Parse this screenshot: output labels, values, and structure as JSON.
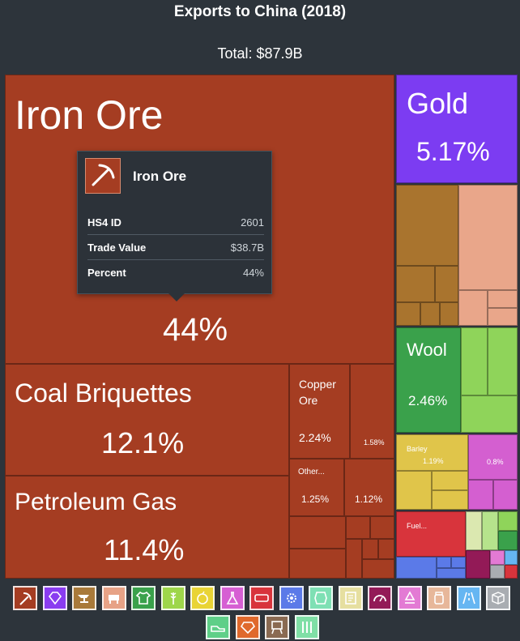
{
  "title": "Exports to China (2018)",
  "total": "Total: $87.9B",
  "chart_data": {
    "type": "treemap",
    "title": "Exports to China (2018)",
    "total": "$87.9B",
    "items": [
      {
        "label": "Iron Ore",
        "percent": 44,
        "display": "44%"
      },
      {
        "label": "Coal Briquettes",
        "percent": 12.1,
        "display": "12.1%"
      },
      {
        "label": "Petroleum Gas",
        "percent": 11.4,
        "display": "11.4%"
      },
      {
        "label": "Gold",
        "percent": 5.17,
        "display": "5.17%"
      },
      {
        "label": "Wool",
        "percent": 2.46,
        "display": "2.46%"
      },
      {
        "label": "Copper Ore",
        "percent": 2.24,
        "display": "2.24%"
      },
      {
        "label": "",
        "percent": 1.58,
        "display": "1.58%"
      },
      {
        "label": "Other...",
        "percent": 1.25,
        "display": "1.25%"
      },
      {
        "label": "",
        "percent": 1.12,
        "display": "1.12%"
      },
      {
        "label": "Barley",
        "percent": 1.19,
        "display": "1.19%"
      },
      {
        "label": "",
        "percent": 0.8,
        "display": "0.8%"
      },
      {
        "label": "Fuel...",
        "percent": null,
        "display": ""
      }
    ]
  },
  "tooltip": {
    "name": "Iron Ore",
    "rows": [
      {
        "key": "HS4 ID",
        "value": "2601"
      },
      {
        "key": "Trade Value",
        "value": "$38.7B"
      },
      {
        "key": "Percent",
        "value": "44%"
      }
    ]
  },
  "colors": {
    "background": "#2d343b",
    "minerals": "#a53d22",
    "gold": "#7c3cf2",
    "animal_hides": "#a9742e",
    "animal_products": "#e9a68a",
    "textiles": "#3aa14b",
    "vegetable": "#d9c349",
    "foodstuffs": "#e6e24a",
    "chemicals": "#d45fd0",
    "plastics": "#d8343c",
    "machines": "#5b7ae8",
    "vehicles": "#66b6f2",
    "stone": "#dbe8b0",
    "misc": "#a9adb2"
  },
  "legend": [
    {
      "icon": "pickaxe-icon",
      "color": "#a53d22"
    },
    {
      "icon": "diamond-icon",
      "color": "#8a3cf0"
    },
    {
      "icon": "anvil-icon",
      "color": "#a97a3a"
    },
    {
      "icon": "cow-icon",
      "color": "#e7a286"
    },
    {
      "icon": "shirt-icon",
      "color": "#3aa14b"
    },
    {
      "icon": "wheat-icon",
      "color": "#9ed64a"
    },
    {
      "icon": "fruit-icon",
      "color": "#e9d435"
    },
    {
      "icon": "flask-icon",
      "color": "#d65fd3"
    },
    {
      "icon": "battery-icon",
      "color": "#d8343c"
    },
    {
      "icon": "gear-icon",
      "color": "#5b7ae8"
    },
    {
      "icon": "leather-icon",
      "color": "#7ee0b4"
    },
    {
      "icon": "document-icon",
      "color": "#e6dfa0"
    },
    {
      "icon": "gauge-icon",
      "color": "#931a57"
    },
    {
      "icon": "recycle-icon",
      "color": "#e37ad4"
    },
    {
      "icon": "jar-icon",
      "color": "#e7b79a"
    },
    {
      "icon": "road-icon",
      "color": "#66b6f2"
    },
    {
      "icon": "box-icon",
      "color": "#a9adb2"
    },
    {
      "icon": "shoe-icon",
      "color": "#5fcf88"
    },
    {
      "icon": "gem-icon",
      "color": "#e0692c"
    },
    {
      "icon": "easel-icon",
      "color": "#8a6a52"
    },
    {
      "icon": "bamboo-icon",
      "color": "#80dfa6"
    }
  ]
}
